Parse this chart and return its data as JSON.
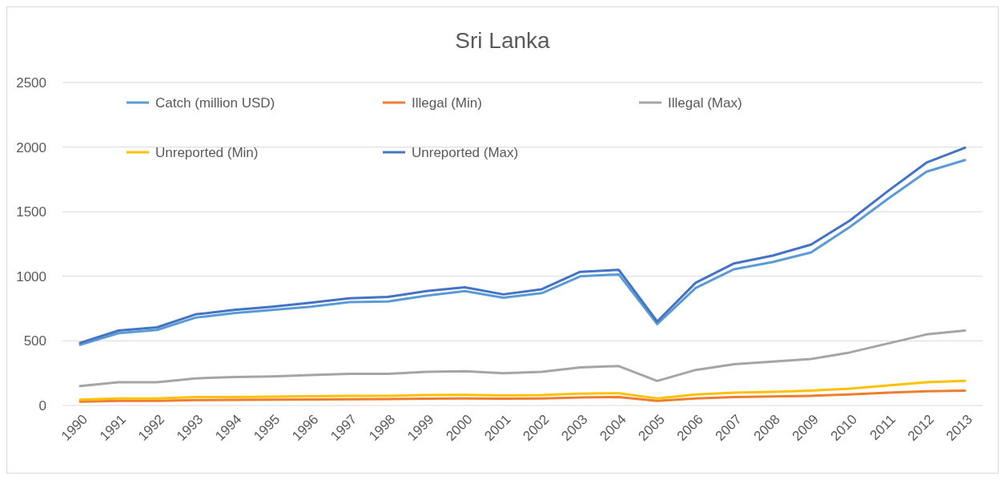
{
  "chart_data": {
    "type": "line",
    "title": "Sri Lanka",
    "categories": [
      "1990",
      "1991",
      "1992",
      "1993",
      "1994",
      "1995",
      "1996",
      "1997",
      "1998",
      "1999",
      "2000",
      "2001",
      "2002",
      "2003",
      "2004",
      "2005",
      "2006",
      "2007",
      "2008",
      "2009",
      "2010",
      "2011",
      "2012",
      "2013"
    ],
    "series": [
      {
        "name": "Catch (million USD)",
        "color": "#5b9bd5",
        "values": [
          470,
          560,
          585,
          680,
          715,
          740,
          765,
          800,
          805,
          850,
          885,
          835,
          870,
          1000,
          1015,
          630,
          910,
          1055,
          1110,
          1185,
          1380,
          1600,
          1810,
          1900
        ]
      },
      {
        "name": "Illegal (Min)",
        "color": "#ed7d31",
        "values": [
          30,
          35,
          35,
          42,
          43,
          45,
          47,
          48,
          50,
          52,
          55,
          52,
          55,
          62,
          65,
          35,
          55,
          65,
          70,
          75,
          85,
          100,
          110,
          115
        ]
      },
      {
        "name": "Illegal (Max)",
        "color": "#a5a5a5",
        "values": [
          150,
          180,
          180,
          210,
          220,
          225,
          235,
          245,
          245,
          260,
          265,
          250,
          260,
          295,
          305,
          190,
          275,
          320,
          340,
          360,
          410,
          480,
          550,
          580
        ]
      },
      {
        "name": "Unreported (Min)",
        "color": "#ffc000",
        "values": [
          45,
          55,
          55,
          65,
          65,
          68,
          72,
          75,
          75,
          80,
          82,
          78,
          80,
          92,
          95,
          55,
          85,
          100,
          105,
          115,
          130,
          155,
          180,
          190
        ]
      },
      {
        "name": "Unreported (Max)",
        "color": "#4472c4",
        "values": [
          485,
          580,
          605,
          705,
          740,
          765,
          795,
          830,
          840,
          885,
          915,
          860,
          900,
          1035,
          1050,
          650,
          950,
          1100,
          1160,
          1245,
          1430,
          1660,
          1880,
          1995
        ]
      }
    ],
    "ylim": [
      0,
      2500
    ],
    "yticks": [
      0,
      500,
      1000,
      1500,
      2000,
      2500
    ],
    "grid": "y",
    "legend": "top",
    "marker": "none",
    "line_style": "solid"
  }
}
